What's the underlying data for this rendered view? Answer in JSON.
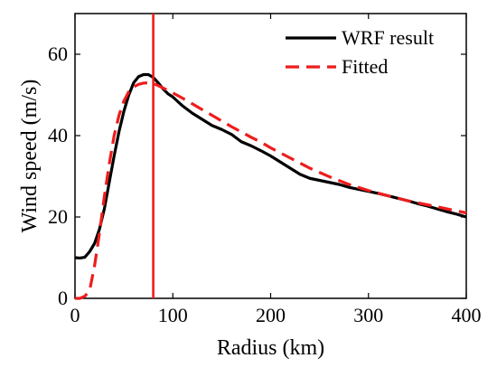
{
  "chart_data": {
    "type": "line",
    "title": "",
    "xlabel": "Radius (km)",
    "ylabel": "Wind speed (m/s)",
    "xlim": [
      0,
      400
    ],
    "ylim": [
      0,
      70
    ],
    "xticks": [
      0,
      100,
      200,
      300,
      400
    ],
    "yticks": [
      0,
      20,
      40,
      60
    ],
    "grid": false,
    "legend_position": "top-right",
    "series": [
      {
        "name": "WRF result",
        "color": "#000000",
        "style": "solid",
        "x": [
          0,
          5,
          10,
          15,
          20,
          25,
          30,
          35,
          40,
          45,
          50,
          55,
          60,
          65,
          70,
          75,
          80,
          85,
          90,
          95,
          100,
          110,
          120,
          130,
          140,
          150,
          160,
          170,
          180,
          190,
          200,
          210,
          220,
          230,
          240,
          250,
          260,
          270,
          280,
          290,
          300,
          310,
          320,
          330,
          340,
          350,
          360,
          370,
          380,
          390,
          400
        ],
        "y": [
          10,
          9.9,
          10.1,
          11.5,
          13.5,
          17,
          22,
          28.5,
          35,
          41,
          46,
          50,
          53,
          54.5,
          55,
          55,
          54.3,
          53,
          51.5,
          50.3,
          49.5,
          47.3,
          45.5,
          44,
          42.5,
          41.5,
          40.3,
          38.5,
          37.5,
          36.3,
          35,
          33.5,
          32,
          30.5,
          29.5,
          29,
          28.5,
          28,
          27.3,
          26.8,
          26.3,
          25.8,
          25.2,
          24.6,
          24,
          23.3,
          22.7,
          22,
          21.3,
          20.7,
          20
        ]
      },
      {
        "name": "Fitted",
        "color": "#ee1c1c",
        "style": "dashed",
        "x": [
          0,
          5,
          10,
          15,
          20,
          25,
          30,
          35,
          40,
          45,
          50,
          55,
          60,
          65,
          70,
          75,
          80,
          85,
          90,
          100,
          110,
          120,
          130,
          140,
          150,
          160,
          170,
          180,
          190,
          200,
          220,
          240,
          260,
          280,
          300,
          320,
          340,
          360,
          380,
          400
        ],
        "y": [
          0,
          0,
          0.5,
          2,
          8,
          16,
          25,
          33,
          40,
          45,
          48.5,
          50.8,
          52,
          52.6,
          52.9,
          53,
          52.8,
          52.3,
          51.7,
          50.5,
          49.2,
          47.8,
          46.4,
          45,
          43.6,
          42.2,
          40.9,
          39.6,
          38.4,
          37,
          34.5,
          32,
          29.9,
          28,
          26.5,
          25.2,
          24,
          23,
          22,
          21
        ]
      }
    ],
    "vertical_line": {
      "x": 80,
      "color": "#ee1c1c"
    }
  }
}
